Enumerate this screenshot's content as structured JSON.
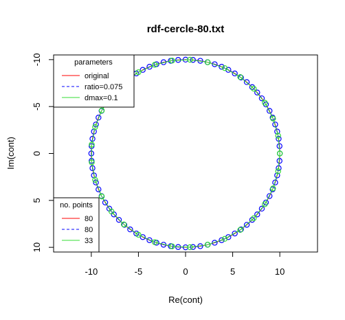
{
  "chart_data": {
    "type": "scatter",
    "title": "rdf-cercle-80.txt",
    "xlabel": "Re(cont)",
    "ylabel": "Im(cont)",
    "xlim": [
      -14,
      14
    ],
    "ylim": [
      10.5,
      -10.5
    ],
    "xticks": [
      -10,
      -5,
      0,
      5,
      10
    ],
    "yticks": [
      -10,
      -5,
      0,
      5,
      10
    ],
    "xtick_labels": [
      "-10",
      "-5",
      "0",
      "5",
      "10"
    ],
    "ytick_labels": [
      "-10",
      "-5",
      "0",
      "5",
      "10"
    ],
    "grid": false,
    "circle": {
      "center": [
        0,
        0
      ],
      "radius": 10
    },
    "series": [
      {
        "name": "original",
        "style": "solid line",
        "color": "#ff0000",
        "points": 80
      },
      {
        "name": "ratio=0.075",
        "style": "dashed line with open circles",
        "color": "#0000ff",
        "points": 80
      },
      {
        "name": "dmax=0.1",
        "style": "solid line with open circles",
        "color": "#33dd33",
        "points": 33
      }
    ],
    "legend_parameters": {
      "title": "parameters",
      "position": "top-left",
      "entries": [
        "original",
        "ratio=0.075",
        "dmax=0.1"
      ]
    },
    "legend_points": {
      "title": "no. points",
      "position": "bottom-left",
      "entries": [
        "80",
        "80",
        "33"
      ]
    }
  }
}
